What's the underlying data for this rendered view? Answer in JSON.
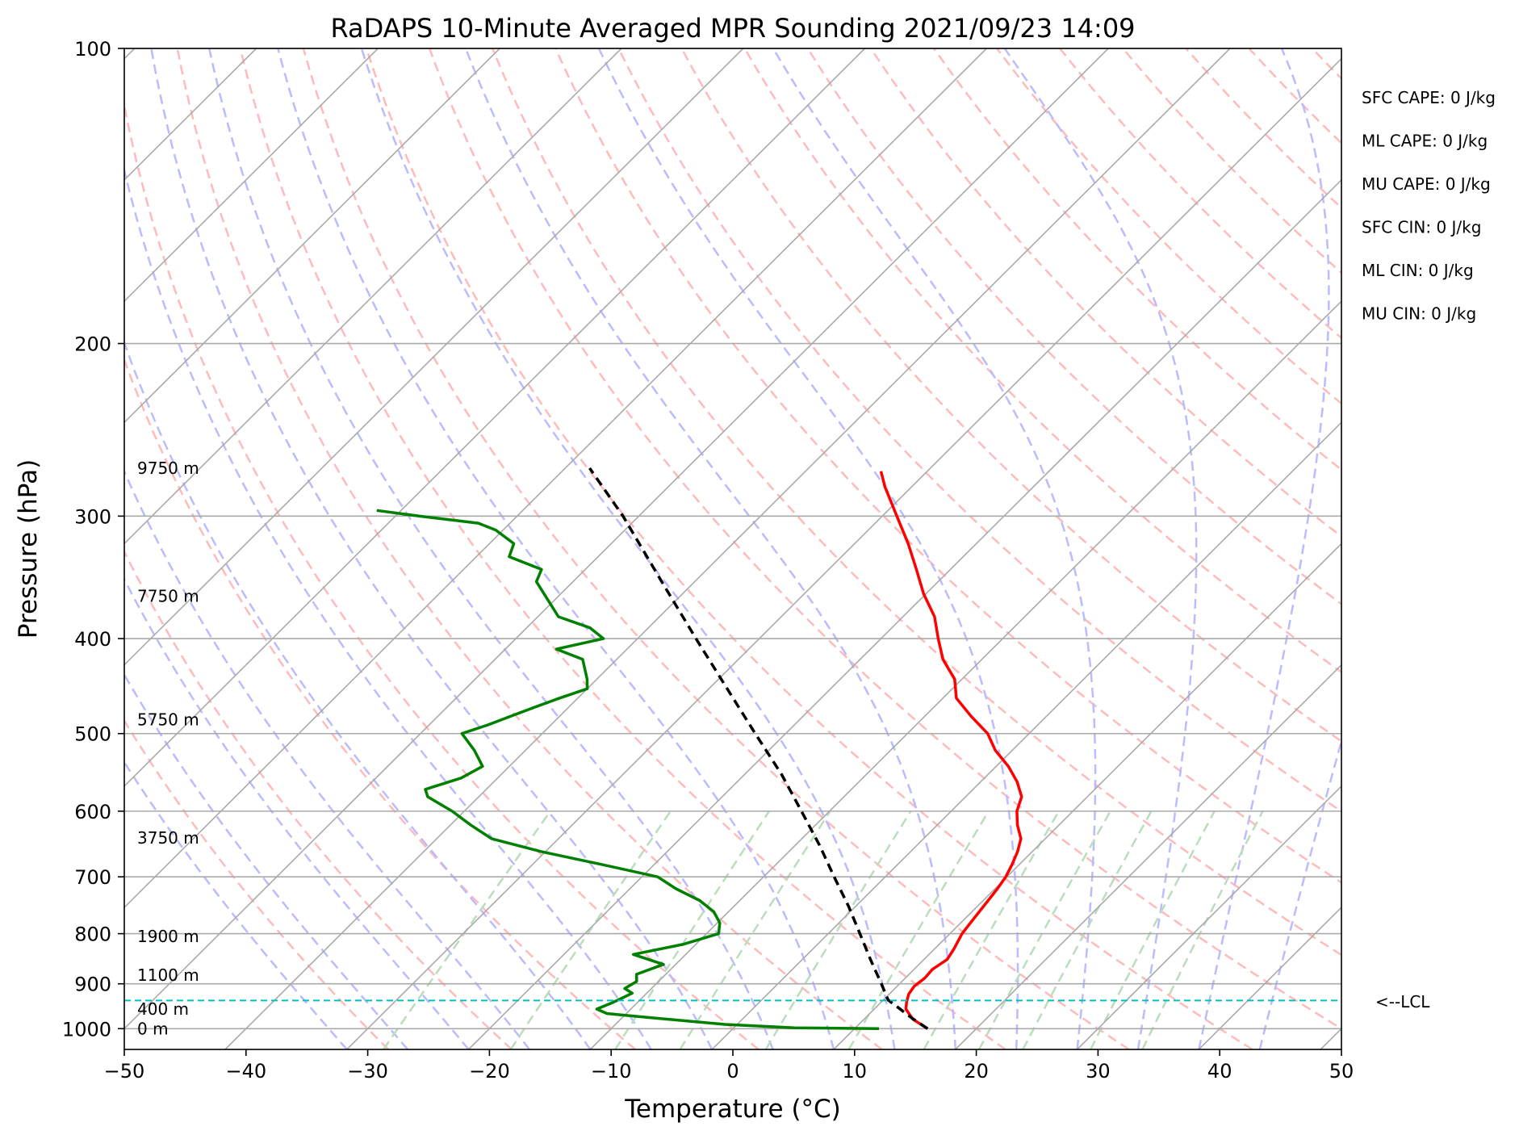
{
  "chart_data": {
    "type": "line",
    "title": "RaDAPS 10-Minute Averaged MPR Sounding 2021/09/23 14:09",
    "xlabel": "Temperature (°C)",
    "ylabel": "Pressure (hPa)",
    "xlim": [
      -50,
      50
    ],
    "ylim": [
      1050,
      100
    ],
    "yscale": "log",
    "skew": "skew-T",
    "x_ticks": [
      "−50",
      "−40",
      "−30",
      "−20",
      "−10",
      "0",
      "10",
      "20",
      "30",
      "40",
      "50"
    ],
    "y_ticks": [
      "100",
      "200",
      "300",
      "400",
      "500",
      "600",
      "700",
      "800",
      "900",
      "1000"
    ],
    "y_tick_values": [
      100,
      200,
      300,
      400,
      500,
      600,
      700,
      800,
      900,
      1000
    ],
    "grid": true,
    "series": [
      {
        "role": "temperature",
        "color": "#ff0000",
        "points": [
          [
            1000,
            16.0
          ],
          [
            978,
            14.0
          ],
          [
            955,
            12.6
          ],
          [
            940,
            12.1
          ],
          [
            922,
            11.6
          ],
          [
            905,
            11.4
          ],
          [
            888,
            11.6
          ],
          [
            870,
            11.5
          ],
          [
            850,
            11.9
          ],
          [
            830,
            11.6
          ],
          [
            800,
            11.0
          ],
          [
            780,
            10.8
          ],
          [
            760,
            10.6
          ],
          [
            740,
            10.4
          ],
          [
            720,
            10.2
          ],
          [
            700,
            9.9
          ],
          [
            680,
            9.4
          ],
          [
            660,
            8.8
          ],
          [
            640,
            8.0
          ],
          [
            620,
            6.6
          ],
          [
            600,
            5.4
          ],
          [
            580,
            4.6
          ],
          [
            560,
            3.0
          ],
          [
            540,
            1.0
          ],
          [
            520,
            -1.4
          ],
          [
            500,
            -3.4
          ],
          [
            480,
            -6.2
          ],
          [
            460,
            -8.9
          ],
          [
            440,
            -10.6
          ],
          [
            420,
            -13.2
          ],
          [
            400,
            -15.3
          ],
          [
            380,
            -17.4
          ],
          [
            360,
            -20.2
          ],
          [
            340,
            -22.8
          ],
          [
            320,
            -25.6
          ],
          [
            300,
            -28.8
          ],
          [
            280,
            -32.2
          ],
          [
            270,
            -33.8
          ]
        ]
      },
      {
        "role": "dewpoint",
        "color": "#008000",
        "points": [
          [
            1000,
            12.0
          ],
          [
            998,
            5.0
          ],
          [
            990,
            -1.0
          ],
          [
            975,
            -7.5
          ],
          [
            965,
            -11.6
          ],
          [
            955,
            -12.8
          ],
          [
            940,
            -12.0
          ],
          [
            920,
            -11.2
          ],
          [
            910,
            -12.2
          ],
          [
            895,
            -11.8
          ],
          [
            880,
            -12.4
          ],
          [
            860,
            -11.0
          ],
          [
            840,
            -14.3
          ],
          [
            820,
            -11.0
          ],
          [
            800,
            -9.0
          ],
          [
            780,
            -9.8
          ],
          [
            760,
            -11.2
          ],
          [
            740,
            -13.3
          ],
          [
            720,
            -16.2
          ],
          [
            700,
            -18.7
          ],
          [
            680,
            -24.3
          ],
          [
            660,
            -30.3
          ],
          [
            640,
            -35.5
          ],
          [
            620,
            -38.3
          ],
          [
            600,
            -41.0
          ],
          [
            580,
            -44.2
          ],
          [
            570,
            -45.0
          ],
          [
            555,
            -43.0
          ],
          [
            540,
            -42.2
          ],
          [
            520,
            -44.2
          ],
          [
            500,
            -46.6
          ],
          [
            490,
            -45.2
          ],
          [
            470,
            -42.8
          ],
          [
            460,
            -41.5
          ],
          [
            450,
            -40.0
          ],
          [
            440,
            -40.8
          ],
          [
            420,
            -42.8
          ],
          [
            410,
            -45.8
          ],
          [
            400,
            -42.8
          ],
          [
            390,
            -44.8
          ],
          [
            380,
            -48.3
          ],
          [
            365,
            -50.6
          ],
          [
            350,
            -53.0
          ],
          [
            340,
            -53.6
          ],
          [
            330,
            -57.3
          ],
          [
            320,
            -58.0
          ],
          [
            310,
            -60.6
          ],
          [
            305,
            -62.6
          ],
          [
            300,
            -68.0
          ],
          [
            296,
            -72.0
          ]
        ]
      },
      {
        "role": "parcel",
        "color": "#000000",
        "style": "dashed",
        "points": [
          [
            1000,
            16.0
          ],
          [
            975,
            13.8
          ],
          [
            950,
            11.7
          ],
          [
            935,
            10.4
          ],
          [
            900,
            8.5
          ],
          [
            850,
            5.6
          ],
          [
            800,
            2.6
          ],
          [
            750,
            -0.6
          ],
          [
            700,
            -4.2
          ],
          [
            650,
            -8.0
          ],
          [
            600,
            -12.3
          ],
          [
            550,
            -17.0
          ],
          [
            500,
            -22.5
          ],
          [
            450,
            -28.5
          ],
          [
            400,
            -35.2
          ],
          [
            350,
            -42.7
          ],
          [
            300,
            -51.3
          ],
          [
            268,
            -58.0
          ]
        ]
      }
    ],
    "lcl_hpa": 936,
    "lcl_label": "<--LCL",
    "height_labels": [
      {
        "text": "0 m",
        "p": 1000
      },
      {
        "text": "400 m",
        "p": 955
      },
      {
        "text": "1100 m",
        "p": 882
      },
      {
        "text": "1900 m",
        "p": 805
      },
      {
        "text": "3750 m",
        "p": 639
      },
      {
        "text": "5750 m",
        "p": 484
      },
      {
        "text": "7750 m",
        "p": 362
      },
      {
        "text": "9750 m",
        "p": 268
      }
    ],
    "indices": [
      {
        "label": "SFC CAPE: 0 J/kg"
      },
      {
        "label": "ML CAPE: 0 J/kg"
      },
      {
        "label": "MU CAPE: 0 J/kg"
      },
      {
        "label": "SFC CIN: 0 J/kg"
      },
      {
        "label": "ML CIN: 0 J/kg"
      },
      {
        "label": "MU CIN: 0 J/kg"
      }
    ],
    "colors": {
      "isotherm": "#aaaaaa",
      "dry_adiabat": "#ffbbbb",
      "moist_adiabat": "#bbbbff",
      "mixing_ratio": "#bbddbb",
      "lcl": "#00c0c0"
    }
  }
}
